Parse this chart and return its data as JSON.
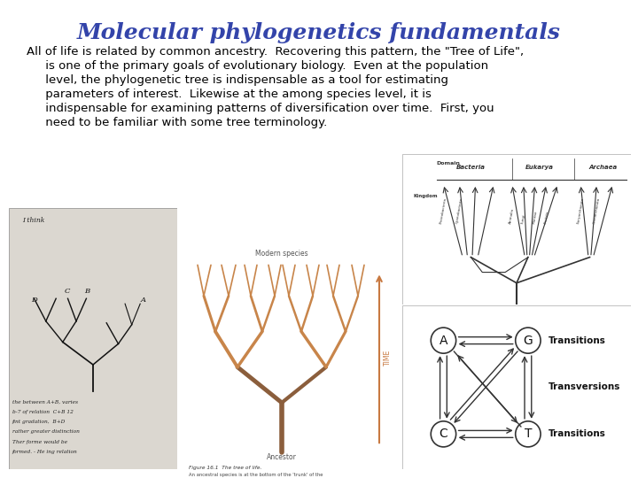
{
  "title": "Molecular phylogenetics fundamentals",
  "title_color": "#3344aa",
  "title_fontsize": 18,
  "background_color": "#ffffff",
  "body_text_lines": [
    "All of life is related by common ancestry.  Recovering this pattern, the \"Tree of Life\",",
    "     is one of the primary goals of evolutionary biology.  Even at the population",
    "     level, the phylogenetic tree is indispensable as a tool for estimating",
    "     parameters of interest.  Likewise at the among species level, it is",
    "     indispensable for examining patterns of diversification over time.  First, you",
    "     need to be familiar with some tree terminology."
  ],
  "body_fontsize": 9.5,
  "tree_color": "#c8854a",
  "trunk_dark": "#8b5e3c",
  "node_color": "#ffffff",
  "node_edge": "#444444"
}
